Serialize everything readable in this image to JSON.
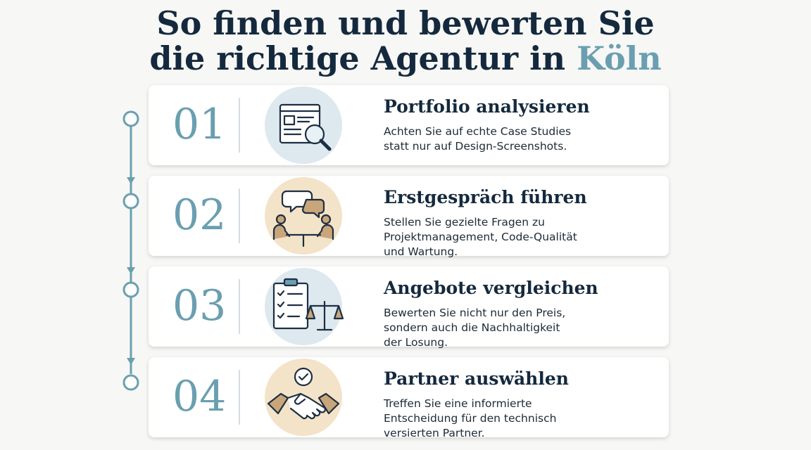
{
  "title": {
    "line1": "So finden und bewerten Sie",
    "line2": "die richtige Agentur in",
    "highlight": "Köln"
  },
  "steps": [
    {
      "number": "01",
      "heading": "Portfolio analysieren",
      "description": [
        "Achten Sie auf echte Case Studies",
        "statt nur auf Design-Screenshots."
      ]
    },
    {
      "number": "02",
      "heading": "Erstgespräch führen",
      "description": [
        "Stellen Sie gezielte Fragen zu",
        "Projektmanagement, Code-Qualität",
        "und Wartung."
      ]
    },
    {
      "number": "03",
      "heading": "Angebote vergleichen",
      "description": [
        "Bewerten Sie nicht nur den Preis,",
        "sondern auch die Nachhaltigkeit",
        "der Losung."
      ]
    },
    {
      "number": "04",
      "heading": "Partner auswählen",
      "description": [
        "Treffen Sie eine informierte",
        "Entscheidung für den technisch",
        "versierten Partner."
      ]
    }
  ]
}
